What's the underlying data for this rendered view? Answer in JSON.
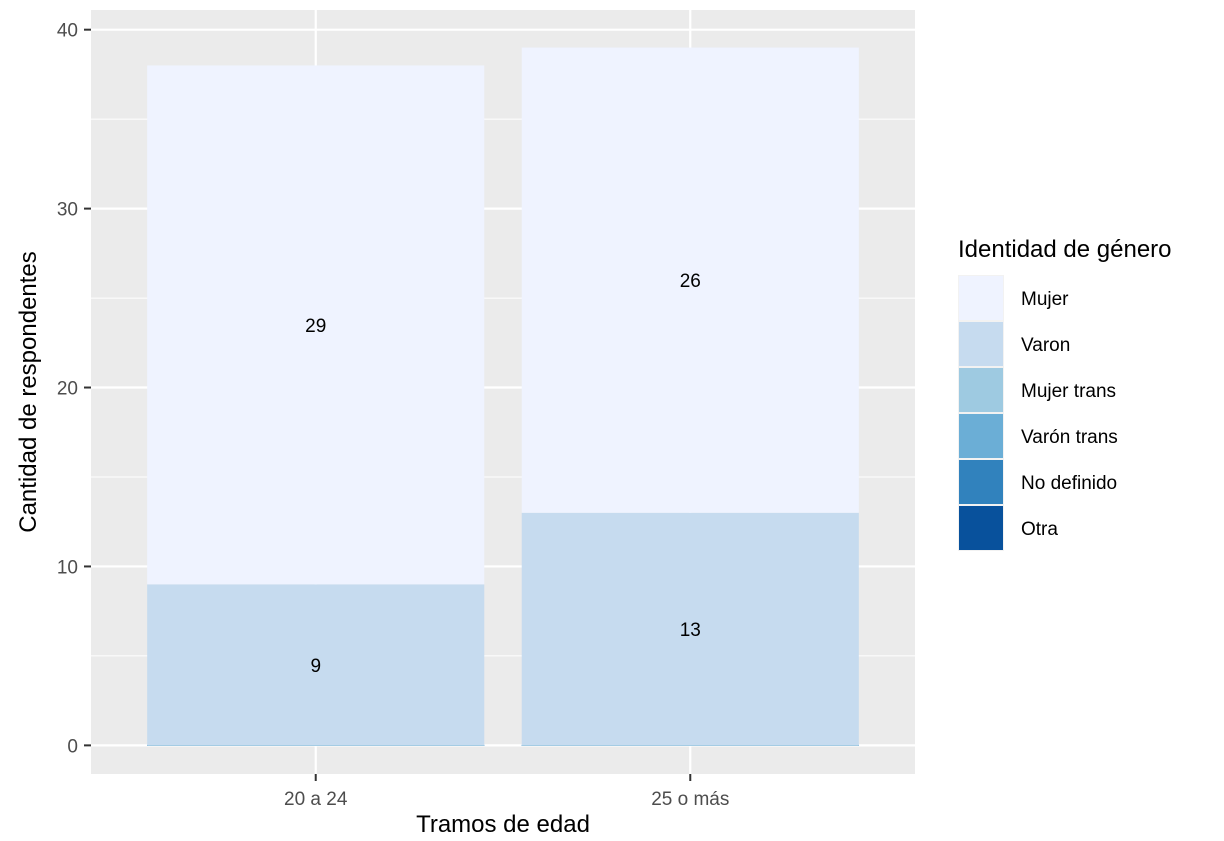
{
  "chart_data": {
    "type": "bar",
    "stacked": true,
    "categories": [
      "20 a 24",
      "25 o más"
    ],
    "series": [
      {
        "name": "Mujer",
        "color": "#EFF3FF",
        "values": [
          29,
          26
        ],
        "labels": [
          "29",
          "26"
        ]
      },
      {
        "name": "Varon",
        "color": "#C6DBEF",
        "values": [
          9,
          13
        ],
        "labels": [
          "9",
          "13"
        ]
      },
      {
        "name": "Mujer trans",
        "color": "#9ECAE1",
        "values": [
          0,
          0
        ],
        "labels": [
          "",
          ""
        ]
      },
      {
        "name": "Varón trans",
        "color": "#6BAED6",
        "values": [
          0,
          0
        ],
        "labels": [
          "",
          ""
        ]
      },
      {
        "name": "No definido",
        "color": "#3182BD",
        "values": [
          0,
          0
        ],
        "labels": [
          "",
          ""
        ]
      },
      {
        "name": "Otra",
        "color": "#08519C",
        "values": [
          0,
          0
        ],
        "labels": [
          "",
          ""
        ]
      }
    ],
    "xlabel": "Tramos de edad",
    "ylabel": "Cantidad de respondentes",
    "ylim": [
      -1.6,
      41.1
    ],
    "yticks": [
      0,
      10,
      20,
      30,
      40
    ],
    "grid": true,
    "panel_background": "#EBEBEB",
    "legend_title": "Identidad de género",
    "legend_position": "right"
  }
}
